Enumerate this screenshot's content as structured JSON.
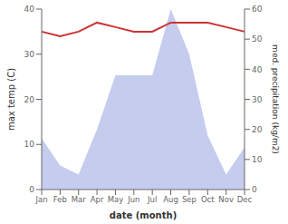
{
  "chart_data": {
    "type": "line",
    "categories": [
      "Jan",
      "Feb",
      "Mar",
      "Apr",
      "May",
      "Jun",
      "Jul",
      "Aug",
      "Sep",
      "Oct",
      "Nov",
      "Dec"
    ],
    "series": [
      {
        "type": "area",
        "color": "#c5ccee",
        "axis": "y2",
        "values": [
          17,
          8,
          5,
          20,
          38,
          38,
          38,
          60,
          45,
          18,
          5,
          14
        ]
      },
      {
        "type": "line",
        "color": "#cc3333",
        "values": [
          35,
          34,
          35,
          37,
          36,
          35,
          35,
          37,
          37,
          37,
          36,
          35
        ]
      }
    ],
    "xlabel": "date (month)",
    "ylabel": "max temp (C)",
    "y2label": "med. precipitation (kg/m2)",
    "ylim": [
      0,
      40
    ],
    "yticks": [
      0,
      10,
      20,
      30,
      40
    ],
    "y2lim": [
      0,
      60
    ],
    "y2ticks": [
      0,
      10,
      20,
      30,
      40,
      50,
      60
    ],
    "grid": false
  }
}
